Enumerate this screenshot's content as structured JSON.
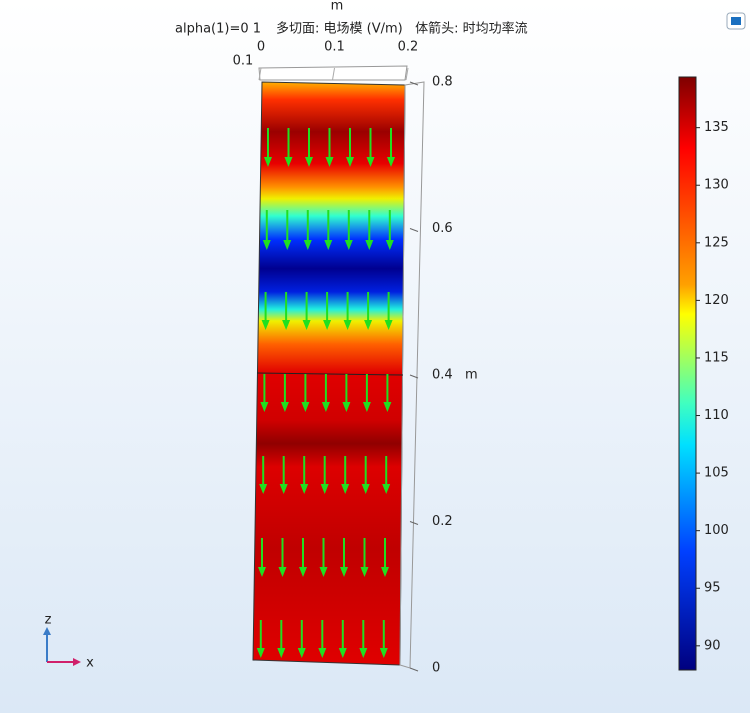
{
  "header": {
    "parameter": "alpha(1)=0 1",
    "title": "多切面: 电场模 (V/m)   体箭头: 时均功率流"
  },
  "x_axis": {
    "unit": "m",
    "ticks": [
      0,
      0.1,
      0.2
    ]
  },
  "y_axis": {
    "ticks": [
      0.1
    ]
  },
  "z_axis": {
    "unit": "m",
    "lim": [
      0,
      0.8
    ],
    "ticks": [
      0,
      0.2,
      0.4,
      0.6,
      0.8
    ]
  },
  "colorbar": {
    "lim": [
      87.9,
      139.4
    ],
    "ticks": [
      90,
      95,
      100,
      105,
      110,
      115,
      120,
      125,
      130,
      135
    ]
  },
  "triad": {
    "z": "z",
    "x": "x"
  }
}
